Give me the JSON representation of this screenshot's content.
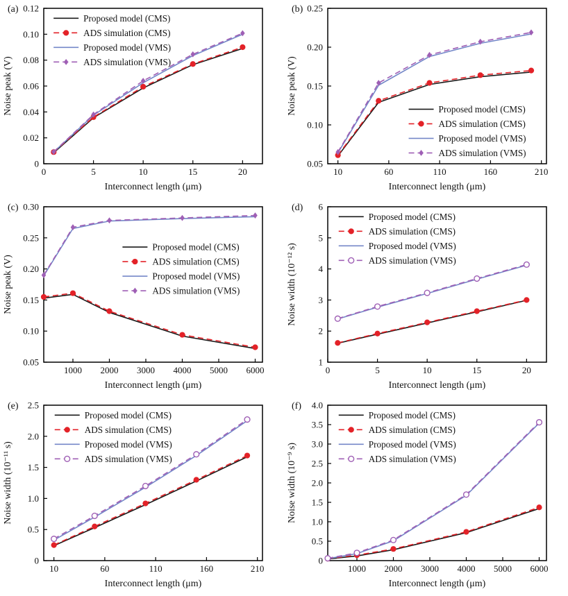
{
  "colors": {
    "cms_model": "#1a1a1a",
    "cms_ads": "#e32228",
    "vms_model": "#7487c8",
    "vms_ads": "#9f5fb5",
    "axis": "#000000",
    "text": "#111111"
  },
  "chart_data": [
    {
      "panel_label": "(a)",
      "type": "line",
      "xlabel": "Interconnect length (μm)",
      "ylabel": "Noise peak (V)",
      "xlim": [
        0,
        22
      ],
      "ylim": [
        0,
        0.12
      ],
      "xticks": [
        0,
        5,
        10,
        15,
        20
      ],
      "xtick_labels": [
        "0",
        "5",
        "10",
        "15",
        "20"
      ],
      "yticks": [
        0,
        0.02,
        0.04,
        0.06,
        0.08,
        0.1,
        0.12
      ],
      "ytick_labels": [
        "0",
        "0.02",
        "0.04",
        "0.06",
        "0.08",
        "0.10",
        "0.12"
      ],
      "x": [
        1,
        5,
        10,
        15,
        20
      ],
      "series": [
        {
          "name": "Proposed model (CMS)",
          "color": "cms_model",
          "line": "solid",
          "marker": "none",
          "values": [
            0.0085,
            0.0355,
            0.0585,
            0.0765,
            0.089
          ]
        },
        {
          "name": "ADS simulation (CMS)",
          "color": "cms_ads",
          "line": "dashed",
          "marker": "circle",
          "values": [
            0.009,
            0.036,
            0.0595,
            0.077,
            0.09
          ]
        },
        {
          "name": "Proposed model (VMS)",
          "color": "vms_model",
          "line": "solid",
          "marker": "none",
          "values": [
            0.009,
            0.0375,
            0.0625,
            0.0835,
            0.1
          ]
        },
        {
          "name": "ADS simulation (VMS)",
          "color": "vms_ads",
          "line": "dashed",
          "marker": "diamond",
          "values": [
            0.0092,
            0.038,
            0.064,
            0.0845,
            0.1008
          ]
        }
      ],
      "legend_pos": [
        0.045,
        0.015
      ],
      "grid": false
    },
    {
      "panel_label": "(b)",
      "type": "line",
      "xlabel": "Interconnect length (μm)",
      "ylabel": "Noise peak (V)",
      "xlim": [
        0,
        215
      ],
      "ylim": [
        0.05,
        0.25
      ],
      "xticks": [
        10,
        60,
        110,
        160,
        210
      ],
      "xtick_labels": [
        "10",
        "60",
        "110",
        "160",
        "210"
      ],
      "yticks": [
        0.05,
        0.1,
        0.15,
        0.2,
        0.25
      ],
      "ytick_labels": [
        "0.05",
        "0.10",
        "0.15",
        "0.20",
        "0.25"
      ],
      "x": [
        10,
        50,
        100,
        150,
        200
      ],
      "series": [
        {
          "name": "Proposed model (CMS)",
          "color": "cms_model",
          "line": "solid",
          "marker": "none",
          "values": [
            0.06,
            0.129,
            0.152,
            0.162,
            0.168
          ]
        },
        {
          "name": "ADS simulation (CMS)",
          "color": "cms_ads",
          "line": "dashed",
          "marker": "circle",
          "values": [
            0.061,
            0.131,
            0.154,
            0.164,
            0.17
          ]
        },
        {
          "name": "Proposed model (VMS)",
          "color": "vms_model",
          "line": "solid",
          "marker": "none",
          "values": [
            0.064,
            0.151,
            0.188,
            0.205,
            0.217
          ]
        },
        {
          "name": "ADS simulation (VMS)",
          "color": "vms_ads",
          "line": "dashed",
          "marker": "diamond",
          "values": [
            0.065,
            0.154,
            0.19,
            0.207,
            0.219
          ]
        }
      ],
      "legend_pos": [
        0.37,
        0.6
      ],
      "grid": false
    },
    {
      "panel_label": "(c)",
      "type": "line",
      "xlabel": "Interconnect length (μm)",
      "ylabel": "Noise peak (V)",
      "xlim": [
        200,
        6200
      ],
      "ylim": [
        0.05,
        0.3
      ],
      "xticks": [
        1000,
        2000,
        3000,
        4000,
        5000,
        6000
      ],
      "xtick_labels": [
        "1000",
        "2000",
        "3000",
        "4000",
        "5000",
        "6000"
      ],
      "yticks": [
        0.05,
        0.1,
        0.15,
        0.2,
        0.25,
        0.3
      ],
      "ytick_labels": [
        "0.05",
        "0.10",
        "0.15",
        "0.20",
        "0.25",
        "0.30"
      ],
      "x": [
        200,
        1000,
        2000,
        4000,
        6000
      ],
      "series": [
        {
          "name": "Proposed model (CMS)",
          "color": "cms_model",
          "line": "solid",
          "marker": "none",
          "values": [
            0.153,
            0.159,
            0.13,
            0.092,
            0.072
          ]
        },
        {
          "name": "ADS simulation (CMS)",
          "color": "cms_ads",
          "line": "dashed",
          "marker": "circle",
          "values": [
            0.155,
            0.161,
            0.132,
            0.094,
            0.074
          ]
        },
        {
          "name": "Proposed model (VMS)",
          "color": "vms_model",
          "line": "solid",
          "marker": "none",
          "values": [
            0.189,
            0.265,
            0.277,
            0.281,
            0.284
          ]
        },
        {
          "name": "ADS simulation (VMS)",
          "color": "vms_ads",
          "line": "dashed",
          "marker": "diamond",
          "values": [
            0.19,
            0.267,
            0.278,
            0.282,
            0.286
          ]
        }
      ],
      "legend_pos": [
        0.36,
        0.21
      ],
      "grid": false
    },
    {
      "panel_label": "(d)",
      "type": "line",
      "xlabel": "Interconnect length (μm)",
      "ylabel": "Noise width (10⁻¹² s)",
      "xlim": [
        0,
        22
      ],
      "ylim": [
        1,
        6
      ],
      "xticks": [
        0,
        5,
        10,
        15,
        20
      ],
      "xtick_labels": [
        "0",
        "5",
        "10",
        "15",
        "20"
      ],
      "yticks": [
        1,
        2,
        3,
        4,
        5,
        6
      ],
      "ytick_labels": [
        "1",
        "2",
        "3",
        "4",
        "5",
        "6"
      ],
      "x": [
        1,
        5,
        10,
        15,
        20
      ],
      "series": [
        {
          "name": "Proposed model (CMS)",
          "color": "cms_model",
          "line": "solid",
          "marker": "none",
          "values": [
            1.61,
            1.9,
            2.26,
            2.62,
            2.99
          ]
        },
        {
          "name": "ADS simulation (CMS)",
          "color": "cms_ads",
          "line": "dashed",
          "marker": "circle",
          "values": [
            1.62,
            1.92,
            2.28,
            2.64,
            3.0
          ]
        },
        {
          "name": "Proposed model (VMS)",
          "color": "vms_model",
          "line": "solid",
          "marker": "none",
          "values": [
            2.39,
            2.77,
            3.21,
            3.67,
            4.12
          ]
        },
        {
          "name": "ADS simulation (VMS)",
          "color": "vms_ads",
          "line": "dashed",
          "marker": "circle-open",
          "values": [
            2.4,
            2.79,
            3.23,
            3.69,
            4.14
          ]
        }
      ],
      "legend_pos": [
        0.05,
        0.015
      ],
      "grid": false
    },
    {
      "panel_label": "(e)",
      "type": "line",
      "xlabel": "Interconnect length (μm)",
      "ylabel": "Noise width (10⁻¹¹ s)",
      "xlim": [
        0,
        215
      ],
      "ylim": [
        0,
        2.5
      ],
      "xticks": [
        10,
        60,
        110,
        160,
        210
      ],
      "xtick_labels": [
        "10",
        "60",
        "110",
        "160",
        "210"
      ],
      "yticks": [
        0,
        0.5,
        1.0,
        1.5,
        2.0,
        2.5
      ],
      "ytick_labels": [
        "0",
        "0.5",
        "1.0",
        "1.5",
        "2.0",
        "2.5"
      ],
      "x": [
        10,
        50,
        100,
        150,
        200
      ],
      "series": [
        {
          "name": "Proposed model (CMS)",
          "color": "cms_model",
          "line": "solid",
          "marker": "none",
          "values": [
            0.24,
            0.53,
            0.9,
            1.28,
            1.67
          ]
        },
        {
          "name": "ADS simulation (CMS)",
          "color": "cms_ads",
          "line": "dashed",
          "marker": "circle",
          "values": [
            0.25,
            0.55,
            0.92,
            1.3,
            1.69
          ]
        },
        {
          "name": "Proposed model (VMS)",
          "color": "vms_model",
          "line": "solid",
          "marker": "none",
          "values": [
            0.33,
            0.7,
            1.18,
            1.69,
            2.25
          ]
        },
        {
          "name": "ADS simulation (VMS)",
          "color": "vms_ads",
          "line": "dashed",
          "marker": "circle-open",
          "values": [
            0.35,
            0.72,
            1.2,
            1.71,
            2.27
          ]
        }
      ],
      "legend_pos": [
        0.05,
        0.015
      ],
      "grid": false
    },
    {
      "panel_label": "(f)",
      "type": "line",
      "xlabel": "Interconnect length (μm)",
      "ylabel": "Noise width (10⁻⁹ s)",
      "xlim": [
        200,
        6200
      ],
      "ylim": [
        0,
        4.0
      ],
      "xticks": [
        1000,
        2000,
        3000,
        4000,
        5000,
        6000
      ],
      "xtick_labels": [
        "1000",
        "2000",
        "3000",
        "4000",
        "5000",
        "6000"
      ],
      "yticks": [
        0,
        0.5,
        1.0,
        1.5,
        2.0,
        2.5,
        3.0,
        3.5,
        4.0
      ],
      "ytick_labels": [
        "0",
        "0.5",
        "1.0",
        "1.5",
        "2.0",
        "2.5",
        "3.0",
        "3.5",
        "4.0"
      ],
      "x": [
        200,
        1000,
        2000,
        4000,
        6000
      ],
      "series": [
        {
          "name": "Proposed model (CMS)",
          "color": "cms_model",
          "line": "solid",
          "marker": "none",
          "values": [
            0.04,
            0.12,
            0.28,
            0.72,
            1.34
          ]
        },
        {
          "name": "ADS simulation (CMS)",
          "color": "cms_ads",
          "line": "dashed",
          "marker": "circle",
          "values": [
            0.05,
            0.14,
            0.3,
            0.74,
            1.37
          ]
        },
        {
          "name": "Proposed model (VMS)",
          "color": "vms_model",
          "line": "solid",
          "marker": "none",
          "values": [
            0.05,
            0.18,
            0.51,
            1.68,
            3.54
          ]
        },
        {
          "name": "ADS simulation (VMS)",
          "color": "vms_ads",
          "line": "dashed",
          "marker": "circle-open",
          "values": [
            0.06,
            0.2,
            0.53,
            1.7,
            3.56
          ]
        }
      ],
      "legend_pos": [
        0.05,
        0.015
      ],
      "grid": false
    }
  ]
}
